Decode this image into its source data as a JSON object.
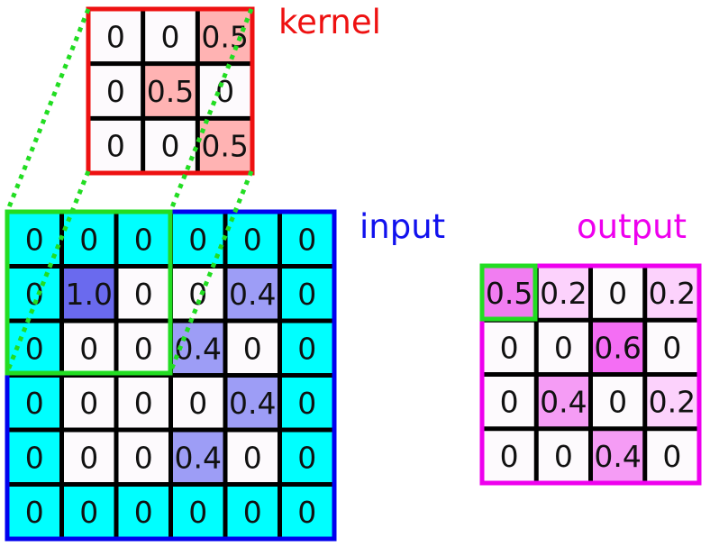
{
  "labels": {
    "kernel": "kernel",
    "input": "input",
    "output": "output"
  },
  "kernel": {
    "values": [
      [
        "0",
        "0",
        "0.5"
      ],
      [
        "0",
        "0.5",
        "0"
      ],
      [
        "0",
        "0",
        "0.5"
      ]
    ],
    "border_color": "#ee1111"
  },
  "input": {
    "values": [
      [
        "0",
        "0",
        "0",
        "0",
        "0",
        "0"
      ],
      [
        "0",
        "1.0",
        "0",
        "0",
        "0.4",
        "0"
      ],
      [
        "0",
        "0",
        "0",
        "0.4",
        "0",
        "0"
      ],
      [
        "0",
        "0",
        "0",
        "0",
        "0.4",
        "0"
      ],
      [
        "0",
        "0",
        "0",
        "0.4",
        "0",
        "0"
      ],
      [
        "0",
        "0",
        "0",
        "0",
        "0",
        "0"
      ]
    ],
    "padding": 1,
    "padding_color": "#00ffff",
    "border_color": "#0000ee"
  },
  "output": {
    "values": [
      [
        "0.5",
        "0.2",
        "0",
        "0.2"
      ],
      [
        "0",
        "0",
        "0.6",
        "0"
      ],
      [
        "0",
        "0.4",
        "0",
        "0.2"
      ],
      [
        "0",
        "0",
        "0.4",
        "0"
      ]
    ],
    "border_color": "#ee00ee"
  },
  "highlight_color": "#22dd22",
  "label_colors": {
    "kernel": "#ee1111",
    "input": "#1111ee",
    "output": "#ee00ee"
  }
}
